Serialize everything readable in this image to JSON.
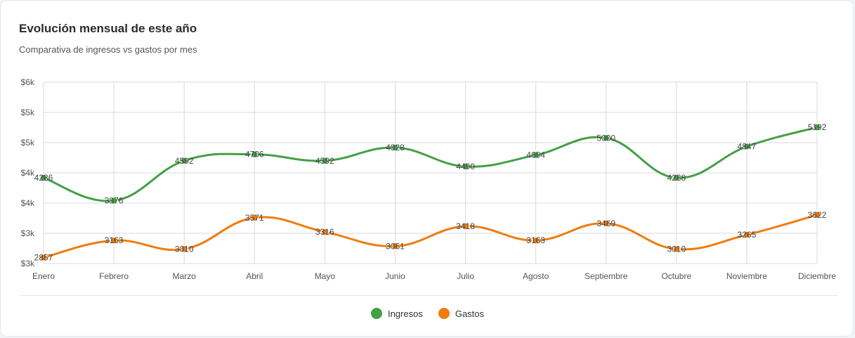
{
  "title": "Evolución mensual de este año",
  "subtitle": "Comparativa de ingresos vs gastos por mes",
  "chart_data": {
    "type": "line",
    "categories": [
      "Enero",
      "Febrero",
      "Marzo",
      "Abril",
      "Mayo",
      "Junio",
      "Julio",
      "Agosto",
      "Septiembre",
      "Octubre",
      "Noviembre",
      "Diciembre"
    ],
    "y_ticks": [
      "$6k",
      "$5k",
      "$5k",
      "$4k",
      "$4k",
      "$3k",
      "$3k"
    ],
    "ylim": [
      2750,
      6000
    ],
    "grid": true,
    "legend_position": "bottom-center",
    "series": [
      {
        "name": "Ingresos",
        "color": "#43a047",
        "values": [
          4286,
          3876,
          4592,
          4706,
          4592,
          4828,
          4490,
          4694,
          5000,
          4288,
          4847,
          5192
        ],
        "labels": [
          "4286",
          "3876",
          "4592",
          "4706",
          "4592",
          "4828",
          "4490",
          "4694",
          "5000",
          "4288",
          "4847",
          "5192"
        ]
      },
      {
        "name": "Gastos",
        "color": "#f07c0f",
        "values": [
          2857,
          3163,
          3010,
          3571,
          3316,
          3061,
          3418,
          3163,
          3469,
          3010,
          3265,
          3622
        ],
        "labels": [
          "2857",
          "3163",
          "3010",
          "3571",
          "3316",
          "3061",
          "3418",
          "3163",
          "3469",
          "3010",
          "3265",
          "3622"
        ]
      }
    ]
  }
}
